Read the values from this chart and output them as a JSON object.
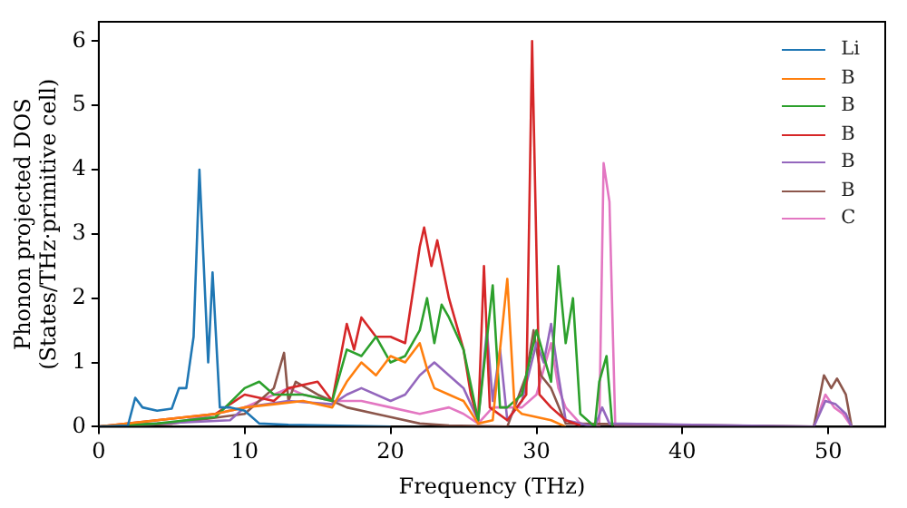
{
  "chart_data": {
    "type": "line",
    "xlabel": "Frequency (THz)",
    "ylabel": "Phonon projected DOS\n(States/THz·primitive cell)",
    "xlim": [
      0,
      53.9
    ],
    "ylim": [
      0,
      6.3
    ],
    "xticks": [
      0,
      10,
      20,
      30,
      40,
      50
    ],
    "yticks": [
      0,
      1,
      2,
      3,
      4,
      5,
      6
    ],
    "grid": false,
    "legend": "top right",
    "marker": "none",
    "line_style": "solid",
    "series": [
      {
        "name": "Li",
        "color": "#1f77b4",
        "x": [
          0,
          2,
          2.5,
          3,
          4,
          5,
          5.5,
          6,
          6.5,
          6.9,
          7.3,
          7.5,
          7.8,
          8.3,
          9,
          10,
          11,
          13,
          20
        ],
        "values": [
          0,
          0.02,
          0.45,
          0.3,
          0.25,
          0.28,
          0.6,
          0.6,
          1.4,
          4.0,
          2.0,
          1.0,
          2.4,
          0.3,
          0.3,
          0.25,
          0.05,
          0.03,
          0
        ]
      },
      {
        "name": "B",
        "color": "#ff7f0e",
        "x": [
          0,
          4,
          8,
          10,
          12,
          14,
          16,
          17,
          18,
          19,
          20,
          21,
          22,
          22.5,
          23,
          24,
          25,
          26,
          27,
          28,
          28.5,
          29,
          31,
          32
        ],
        "values": [
          0,
          0.1,
          0.2,
          0.3,
          0.35,
          0.4,
          0.3,
          0.7,
          1.0,
          0.8,
          1.1,
          1.0,
          1.3,
          0.9,
          0.6,
          0.5,
          0.4,
          0.05,
          0.1,
          2.3,
          0.3,
          0.2,
          0.1,
          0
        ]
      },
      {
        "name": "B",
        "color": "#2ca02c",
        "x": [
          0,
          4,
          8,
          10,
          11,
          12,
          14,
          16,
          17,
          18,
          19,
          20,
          21,
          22,
          22.5,
          23,
          23.5,
          24,
          25,
          26,
          27,
          27.5,
          28,
          29,
          30,
          31,
          31.5,
          32,
          32.5,
          33,
          34,
          34.3,
          34.8,
          35.2
        ],
        "values": [
          0,
          0.05,
          0.15,
          0.6,
          0.7,
          0.5,
          0.5,
          0.4,
          1.2,
          1.1,
          1.4,
          1.0,
          1.1,
          1.5,
          2.0,
          1.3,
          1.9,
          1.7,
          1.2,
          0.1,
          2.2,
          0.3,
          0.3,
          0.5,
          1.5,
          0.7,
          2.5,
          1.3,
          2.0,
          0.2,
          0,
          0.7,
          1.1,
          0
        ]
      },
      {
        "name": "B",
        "color": "#d62728",
        "x": [
          0,
          4,
          8,
          10,
          12,
          13,
          15,
          16,
          17,
          17.5,
          18,
          19,
          20,
          21,
          22,
          22.3,
          22.8,
          23.2,
          24,
          25,
          25.5,
          26,
          26.4,
          26.8,
          28,
          29.3,
          29.7,
          30.2,
          31,
          32,
          33
        ],
        "values": [
          0,
          0.1,
          0.2,
          0.5,
          0.4,
          0.6,
          0.7,
          0.4,
          1.6,
          1.2,
          1.7,
          1.4,
          1.4,
          1.3,
          2.8,
          3.1,
          2.5,
          2.9,
          2.0,
          1.2,
          0.5,
          0.1,
          2.5,
          0.3,
          0.1,
          0.5,
          6.0,
          0.5,
          0.3,
          0.1,
          0.02
        ]
      },
      {
        "name": "B",
        "color": "#9467bd",
        "x": [
          0,
          4,
          9,
          10,
          13,
          16,
          17,
          18,
          20,
          21,
          22,
          23,
          24,
          25,
          26,
          26.6,
          27,
          27.5,
          28,
          29,
          30,
          30.5,
          31,
          31.5,
          32,
          33,
          34,
          34.5,
          35,
          49,
          49.8,
          50.5,
          51.2,
          51.6
        ],
        "values": [
          0,
          0.05,
          0.1,
          0.3,
          0.4,
          0.35,
          0.5,
          0.6,
          0.4,
          0.5,
          0.8,
          1.0,
          0.8,
          0.6,
          0.1,
          1.5,
          0.4,
          1.2,
          0.1,
          0.4,
          1.3,
          1.0,
          1.6,
          0.8,
          0.1,
          0.05,
          0,
          0.3,
          0.05,
          0,
          0.4,
          0.35,
          0.2,
          0
        ]
      },
      {
        "name": "B",
        "color": "#8c564b",
        "x": [
          0,
          5,
          10,
          11,
          12,
          12.7,
          13,
          13.5,
          15,
          17,
          19,
          20,
          22,
          24,
          28,
          29.3,
          29.8,
          30.3,
          31,
          32,
          49,
          49.7,
          50.2,
          50.6,
          51.2,
          51.6
        ],
        "values": [
          0,
          0.05,
          0.2,
          0.4,
          0.6,
          1.15,
          0.4,
          0.7,
          0.5,
          0.3,
          0.2,
          0.15,
          0.05,
          0.02,
          0,
          0.8,
          1.5,
          0.8,
          0.6,
          0.05,
          0,
          0.8,
          0.6,
          0.75,
          0.5,
          0
        ]
      },
      {
        "name": "C",
        "color": "#e377c2",
        "x": [
          0,
          5,
          10,
          12,
          13,
          14,
          16,
          18,
          20,
          22,
          24,
          25,
          26,
          27,
          29,
          30,
          31,
          31.5,
          32,
          33,
          34.3,
          34.6,
          35.0,
          35.4,
          49,
          49.8,
          50.4,
          51,
          51.6
        ],
        "values": [
          0,
          0.05,
          0.3,
          0.5,
          0.6,
          0.5,
          0.4,
          0.4,
          0.3,
          0.2,
          0.3,
          0.2,
          0.05,
          0.3,
          0.3,
          0.5,
          1.3,
          0.6,
          0.3,
          0.05,
          0,
          4.1,
          3.5,
          0,
          0,
          0.5,
          0.3,
          0.2,
          0
        ]
      }
    ]
  }
}
